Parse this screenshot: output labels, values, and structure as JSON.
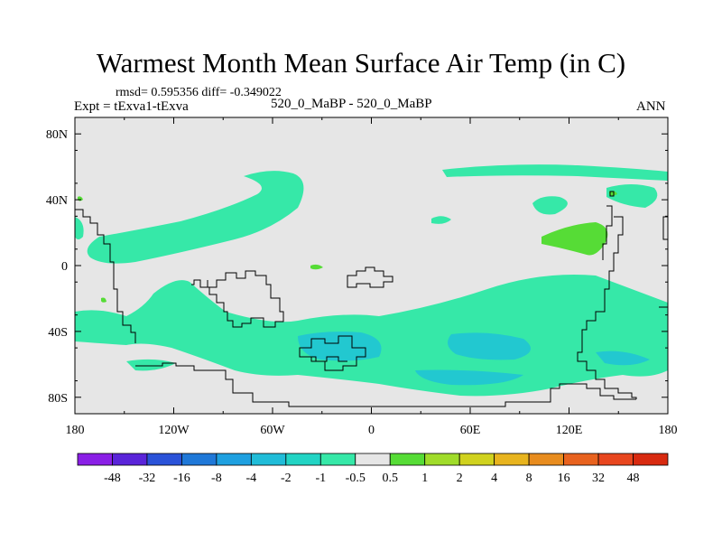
{
  "chart_data": {
    "type": "heatmap",
    "title": "Warmest Month Mean Surface Air Temp (in C)",
    "stats_label": "rmsd= 0.595356 diff= -0.349022",
    "experiment_label": "Expt = tExva1-tExva",
    "period_label": "520_0_MaBP - 520_0_MaBP",
    "season_label": "ANN",
    "xlim": [
      -180,
      180
    ],
    "ylim": [
      -90,
      90
    ],
    "x_tick_values": [
      -180,
      -120,
      -60,
      0,
      60,
      120,
      180
    ],
    "x_tick_labels": [
      "180",
      "120W",
      "60W",
      "0",
      "60E",
      "120E",
      "180"
    ],
    "y_tick_values": [
      80,
      40,
      0,
      -40,
      -80
    ],
    "y_tick_labels": [
      "80N",
      "40N",
      "0",
      "40S",
      "80S"
    ],
    "colorbar": {
      "levels": [
        "-48",
        "-32",
        "-16",
        "-8",
        "-4",
        "-2",
        "-1",
        "-0.5",
        "0.5",
        "1",
        "2",
        "4",
        "8",
        "16",
        "32",
        "48"
      ],
      "colors": [
        "#8a1fe6",
        "#5a24d9",
        "#2a52d8",
        "#1f78d8",
        "#1ea0e0",
        "#20bcd8",
        "#22d4c4",
        "#36e8a8",
        "#e6e6e6",
        "#56dc36",
        "#a0dc2a",
        "#d0d21e",
        "#e8b41e",
        "#e88c1e",
        "#e8621e",
        "#e8461e",
        "#d82a10"
      ]
    },
    "map_background": "#e6e6e6"
  }
}
